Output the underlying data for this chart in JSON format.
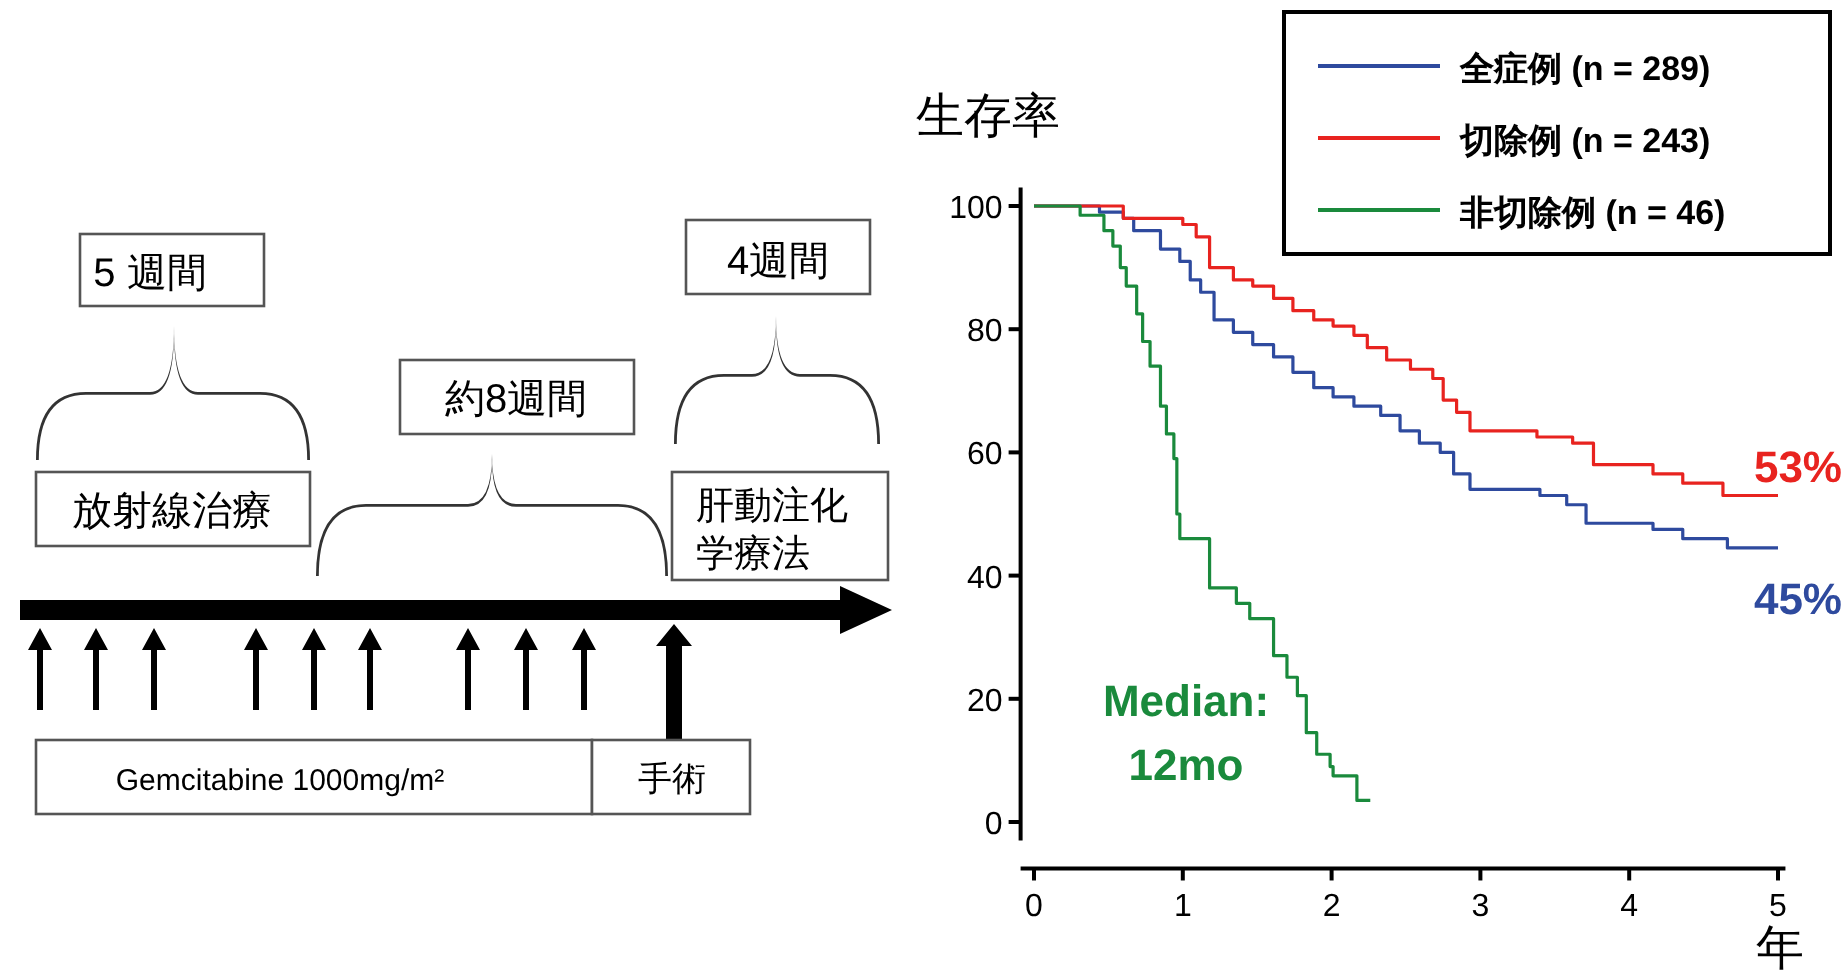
{
  "chart_data": {
    "type": "step",
    "xlabel": "年",
    "ylabel": "生存率",
    "xlim": [
      -0.09,
      5.05
    ],
    "ylim": [
      -3,
      103
    ],
    "xticks": [
      0,
      1,
      2,
      3,
      4,
      5
    ],
    "yticks": [
      0,
      20,
      40,
      60,
      80,
      100
    ],
    "grid": false,
    "legend": "top right",
    "marker": "none",
    "line_style": "solid",
    "series": [
      {
        "name": "全症例 (n = 289)",
        "color": "#2e4a9e",
        "x": [
          0,
          0.44,
          0.6,
          0.67,
          0.85,
          0.98,
          1.05,
          1.12,
          1.21,
          1.34,
          1.47,
          1.61,
          1.74,
          1.88,
          2.01,
          2.15,
          2.33,
          2.46,
          2.59,
          2.73,
          2.82,
          2.93,
          3.4,
          3.58,
          3.71,
          4.16,
          4.36,
          4.66,
          5.0
        ],
        "values": [
          100,
          99,
          98,
          96,
          93,
          91,
          88,
          86,
          81.5,
          79.5,
          77.5,
          75.5,
          73,
          70.5,
          69,
          67.5,
          66,
          63.5,
          61.5,
          60,
          56.5,
          54,
          53,
          51.5,
          48.5,
          47.5,
          46,
          44.5,
          44.5
        ]
      },
      {
        "name": "切除例 (n = 243)",
        "color": "#e8231f",
        "x": [
          0,
          0.6,
          1.0,
          1.09,
          1.18,
          1.34,
          1.47,
          1.61,
          1.74,
          1.88,
          2.01,
          2.15,
          2.24,
          2.37,
          2.53,
          2.68,
          2.75,
          2.84,
          2.93,
          3.38,
          3.62,
          3.76,
          4.16,
          4.36,
          4.63,
          5.0
        ],
        "values": [
          100,
          98,
          97,
          95,
          90,
          88,
          87,
          85,
          83,
          81.5,
          80.5,
          79,
          77,
          75,
          73.5,
          72,
          68.5,
          66.5,
          63.5,
          62.5,
          61.5,
          58,
          56.5,
          55,
          53,
          53
        ]
      },
      {
        "name": "非切除例 (n = 46)",
        "color": "#1a8a3c",
        "x": [
          0,
          0.31,
          0.47,
          0.53,
          0.58,
          0.62,
          0.69,
          0.73,
          0.78,
          0.85,
          0.89,
          0.94,
          0.96,
          0.98,
          1.18,
          1.36,
          1.45,
          1.61,
          1.7,
          1.77,
          1.83,
          1.9,
          1.99,
          2.01,
          2.17,
          2.26
        ],
        "values": [
          100,
          98.5,
          96,
          93.5,
          90,
          87,
          82.5,
          78,
          74,
          67.5,
          63,
          59,
          50,
          46,
          38,
          35.5,
          33,
          27,
          23.5,
          20.5,
          14.5,
          11,
          9,
          7.5,
          3.5,
          3.5
        ]
      }
    ],
    "annotations": [
      "53%",
      "45%",
      "Median: 12mo",
      "5 週間",
      "約8週間",
      "4週間",
      "放射線治療",
      "肝動注化学療法",
      "Gemcitabine 1000mg/m²",
      "手術"
    ]
  }
}
